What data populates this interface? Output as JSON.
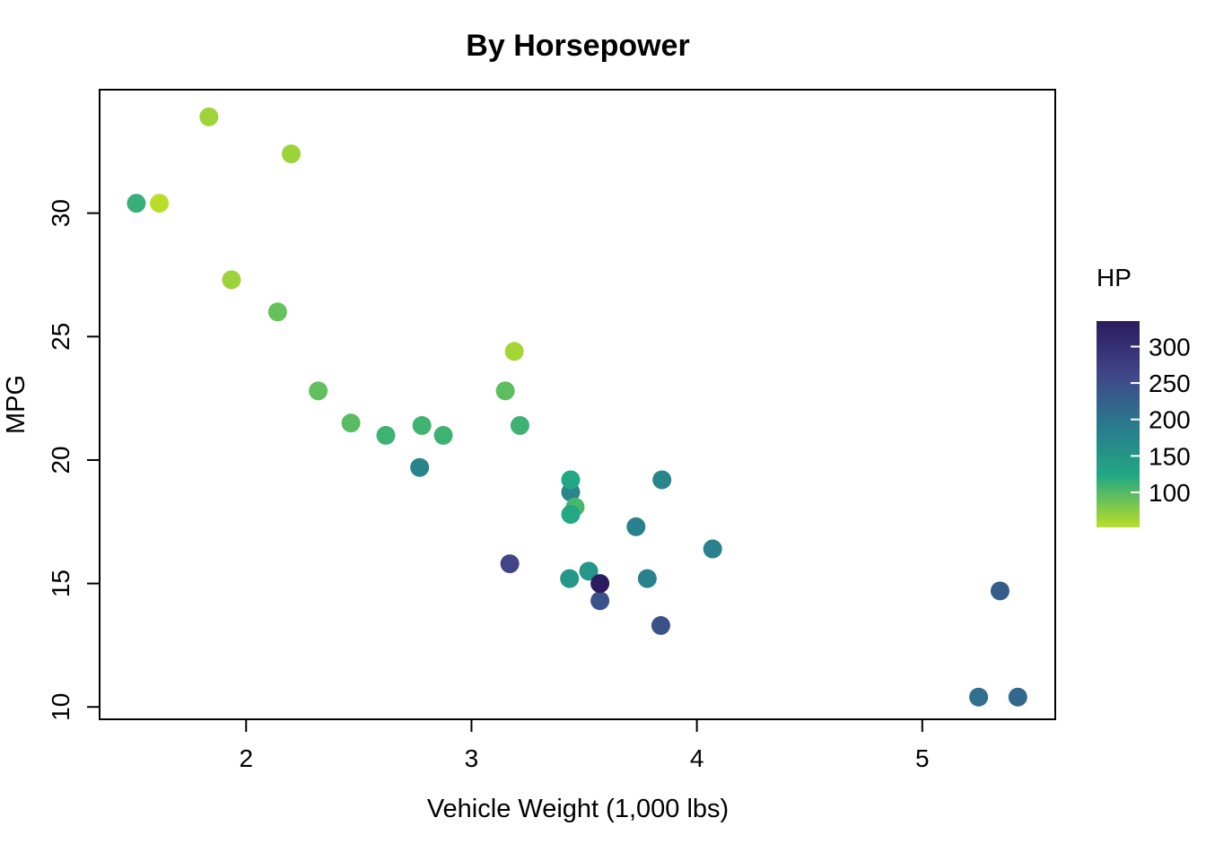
{
  "chart_data": {
    "type": "scatter",
    "title": "By Horsepower",
    "xlabel": "Vehicle Weight (1,000 lbs)",
    "ylabel": "MPG",
    "xlim": [
      1.35,
      5.59
    ],
    "ylim": [
      9.5,
      35.0
    ],
    "x_ticks": [
      "2",
      "3",
      "4",
      "5"
    ],
    "y_ticks": [
      "10",
      "15",
      "20",
      "25",
      "30"
    ],
    "grid": false,
    "legend": {
      "title": "HP",
      "placement": "right",
      "type": "colorbar",
      "range": [
        52,
        335
      ],
      "ticks": [
        "100",
        "150",
        "200",
        "250",
        "300"
      ],
      "colors": [
        "#BADE28",
        "#22A884",
        "#2A788E",
        "#414487",
        "#2B1B5F"
      ]
    },
    "points": [
      {
        "wt": 2.62,
        "mpg": 21.0,
        "hp": 110
      },
      {
        "wt": 2.875,
        "mpg": 21.0,
        "hp": 110
      },
      {
        "wt": 2.32,
        "mpg": 22.8,
        "hp": 93
      },
      {
        "wt": 3.215,
        "mpg": 21.4,
        "hp": 110
      },
      {
        "wt": 3.44,
        "mpg": 18.7,
        "hp": 175
      },
      {
        "wt": 3.46,
        "mpg": 18.1,
        "hp": 105
      },
      {
        "wt": 3.57,
        "mpg": 14.3,
        "hp": 245
      },
      {
        "wt": 3.19,
        "mpg": 24.4,
        "hp": 62
      },
      {
        "wt": 3.15,
        "mpg": 22.8,
        "hp": 95
      },
      {
        "wt": 3.44,
        "mpg": 19.2,
        "hp": 123
      },
      {
        "wt": 3.44,
        "mpg": 17.8,
        "hp": 123
      },
      {
        "wt": 4.07,
        "mpg": 16.4,
        "hp": 180
      },
      {
        "wt": 3.73,
        "mpg": 17.3,
        "hp": 180
      },
      {
        "wt": 3.78,
        "mpg": 15.2,
        "hp": 180
      },
      {
        "wt": 5.25,
        "mpg": 10.4,
        "hp": 205
      },
      {
        "wt": 5.424,
        "mpg": 10.4,
        "hp": 215
      },
      {
        "wt": 5.345,
        "mpg": 14.7,
        "hp": 230
      },
      {
        "wt": 2.2,
        "mpg": 32.4,
        "hp": 66
      },
      {
        "wt": 1.615,
        "mpg": 30.4,
        "hp": 52
      },
      {
        "wt": 1.835,
        "mpg": 33.9,
        "hp": 65
      },
      {
        "wt": 2.465,
        "mpg": 21.5,
        "hp": 97
      },
      {
        "wt": 3.52,
        "mpg": 15.5,
        "hp": 150
      },
      {
        "wt": 3.435,
        "mpg": 15.2,
        "hp": 150
      },
      {
        "wt": 3.84,
        "mpg": 13.3,
        "hp": 245
      },
      {
        "wt": 3.845,
        "mpg": 19.2,
        "hp": 175
      },
      {
        "wt": 1.935,
        "mpg": 27.3,
        "hp": 66
      },
      {
        "wt": 2.14,
        "mpg": 26.0,
        "hp": 91
      },
      {
        "wt": 1.513,
        "mpg": 30.4,
        "hp": 113
      },
      {
        "wt": 3.17,
        "mpg": 15.8,
        "hp": 264
      },
      {
        "wt": 2.77,
        "mpg": 19.7,
        "hp": 175
      },
      {
        "wt": 3.57,
        "mpg": 15.0,
        "hp": 335
      },
      {
        "wt": 2.78,
        "mpg": 21.4,
        "hp": 109
      }
    ]
  }
}
